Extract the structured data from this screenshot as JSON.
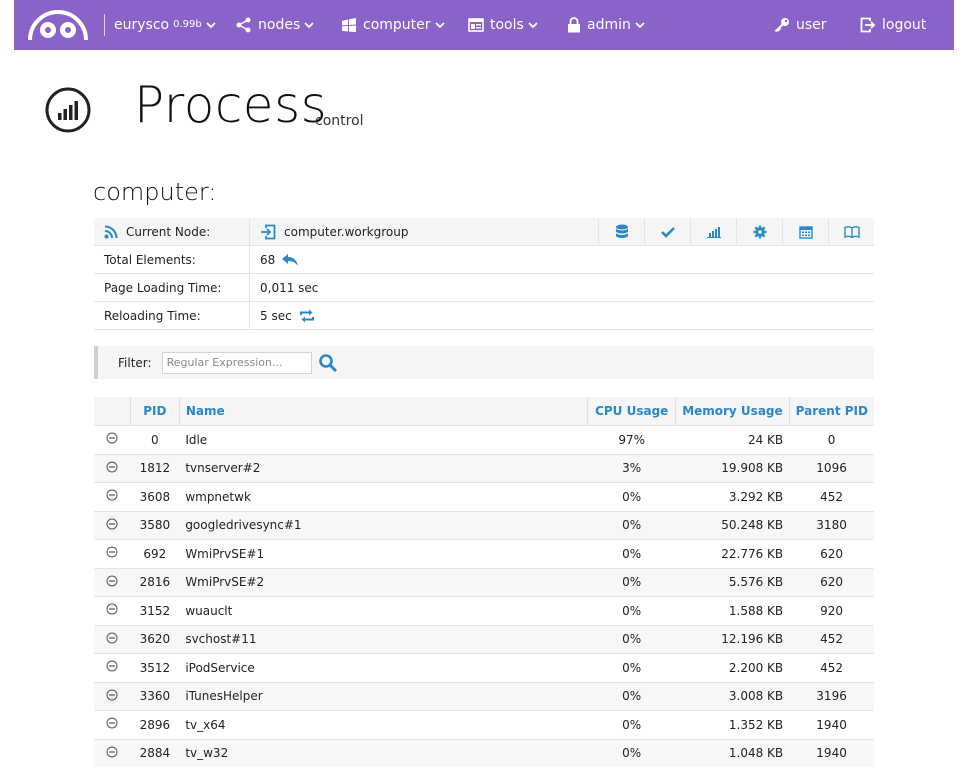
{
  "nav": {
    "brand": "eurysco",
    "version": "0.99b",
    "items": [
      {
        "label": "nodes",
        "icon": "share-icon"
      },
      {
        "label": "computer",
        "icon": "windows-icon"
      },
      {
        "label": "tools",
        "icon": "tools-window-icon"
      },
      {
        "label": "admin",
        "icon": "lock-icon"
      }
    ],
    "user_label": "user",
    "logout_label": "logout",
    "accent": "#8a63c8"
  },
  "page": {
    "title": "Process",
    "subtitle": "control",
    "section": "computer:"
  },
  "info": {
    "current_node_label": "Current Node:",
    "current_node_value": "computer.workgroup",
    "total_elements_label": "Total Elements:",
    "total_elements_value": "68",
    "page_loading_label": "Page Loading Time:",
    "page_loading_value": "0,011 sec",
    "reloading_label": "Reloading Time:",
    "reloading_value": "5 sec",
    "tools": [
      "database-icon",
      "check-icon",
      "bar-chart-icon",
      "gear-icon",
      "calendar-icon",
      "book-icon"
    ]
  },
  "filter": {
    "label": "Filter:",
    "placeholder": "Regular Expression..."
  },
  "table": {
    "headers": {
      "pid": "PID",
      "name": "Name",
      "cpu": "CPU Usage",
      "memory": "Memory Usage",
      "parent": "Parent PID"
    },
    "rows": [
      {
        "pid": "0",
        "name": "Idle",
        "cpu": "97%",
        "memory": "24 KB",
        "parent": "0"
      },
      {
        "pid": "1812",
        "name": "tvnserver#2",
        "cpu": "3%",
        "memory": "19.908 KB",
        "parent": "1096"
      },
      {
        "pid": "3608",
        "name": "wmpnetwk",
        "cpu": "0%",
        "memory": "3.292 KB",
        "parent": "452"
      },
      {
        "pid": "3580",
        "name": "googledrivesync#1",
        "cpu": "0%",
        "memory": "50.248 KB",
        "parent": "3180"
      },
      {
        "pid": "692",
        "name": "WmiPrvSE#1",
        "cpu": "0%",
        "memory": "22.776 KB",
        "parent": "620"
      },
      {
        "pid": "2816",
        "name": "WmiPrvSE#2",
        "cpu": "0%",
        "memory": "5.576 KB",
        "parent": "620"
      },
      {
        "pid": "3152",
        "name": "wuauclt",
        "cpu": "0%",
        "memory": "1.588 KB",
        "parent": "920"
      },
      {
        "pid": "3620",
        "name": "svchost#11",
        "cpu": "0%",
        "memory": "12.196 KB",
        "parent": "452"
      },
      {
        "pid": "3512",
        "name": "iPodService",
        "cpu": "0%",
        "memory": "2.200 KB",
        "parent": "452"
      },
      {
        "pid": "3360",
        "name": "iTunesHelper",
        "cpu": "0%",
        "memory": "3.008 KB",
        "parent": "3196"
      },
      {
        "pid": "2896",
        "name": "tv_x64",
        "cpu": "0%",
        "memory": "1.352 KB",
        "parent": "1940"
      },
      {
        "pid": "2884",
        "name": "tv_w32",
        "cpu": "0%",
        "memory": "1.048 KB",
        "parent": "1940"
      }
    ]
  }
}
